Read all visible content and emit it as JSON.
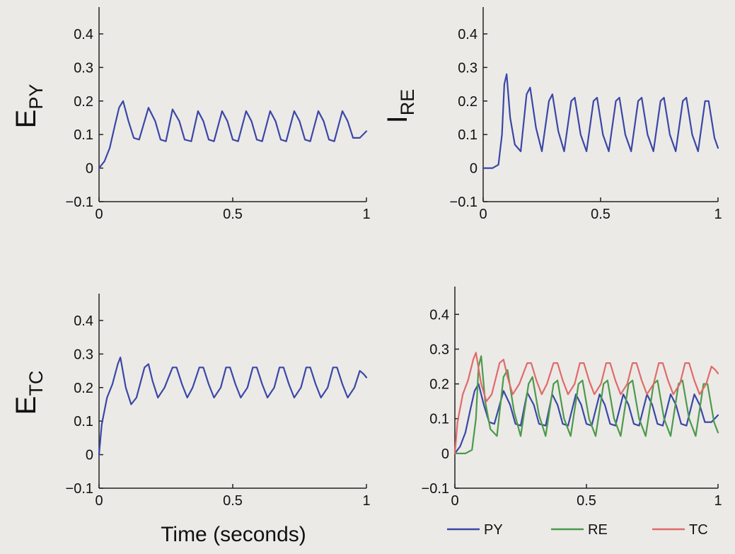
{
  "xlabel": "Time (seconds)",
  "colors": {
    "PY": "#3a47a8",
    "RE": "#4c9a4c",
    "TC": "#e06a6a",
    "axis": "#222222"
  },
  "chart_data": [
    {
      "type": "line",
      "ylabel_main": "E",
      "ylabel_sub": "PY",
      "xlim": [
        0,
        1
      ],
      "ylim": [
        -0.1,
        0.48
      ],
      "xticks": [
        0,
        0.5,
        1
      ],
      "xtick_labels": [
        "0",
        "0.5",
        "1"
      ],
      "yticks": [
        -0.1,
        0,
        0.1,
        0.2,
        0.3,
        0.4
      ],
      "ytick_labels": [
        "−0.1",
        "0",
        "0.1",
        "0.2",
        "0.3",
        "0.4"
      ],
      "grid": false,
      "series": [
        {
          "color_key": "PY",
          "x": [
            0,
            0.02,
            0.04,
            0.06,
            0.075,
            0.09,
            0.11,
            0.13,
            0.15,
            0.185,
            0.21,
            0.23,
            0.25,
            0.275,
            0.3,
            0.32,
            0.345,
            0.37,
            0.39,
            0.41,
            0.43,
            0.46,
            0.48,
            0.5,
            0.52,
            0.55,
            0.57,
            0.59,
            0.61,
            0.64,
            0.66,
            0.68,
            0.7,
            0.73,
            0.75,
            0.77,
            0.79,
            0.82,
            0.84,
            0.86,
            0.88,
            0.91,
            0.93,
            0.95,
            0.975,
            1.0
          ],
          "y": [
            0.0,
            0.02,
            0.06,
            0.13,
            0.18,
            0.2,
            0.14,
            0.09,
            0.085,
            0.18,
            0.14,
            0.085,
            0.08,
            0.175,
            0.14,
            0.085,
            0.08,
            0.17,
            0.14,
            0.085,
            0.08,
            0.17,
            0.14,
            0.085,
            0.08,
            0.17,
            0.14,
            0.085,
            0.08,
            0.17,
            0.14,
            0.085,
            0.08,
            0.17,
            0.14,
            0.085,
            0.08,
            0.17,
            0.14,
            0.085,
            0.08,
            0.17,
            0.14,
            0.09,
            0.09,
            0.11
          ]
        }
      ]
    },
    {
      "type": "line",
      "ylabel_main": "I",
      "ylabel_sub": "RE",
      "xlim": [
        0,
        1
      ],
      "ylim": [
        -0.1,
        0.48
      ],
      "xticks": [
        0,
        0.5,
        1
      ],
      "xtick_labels": [
        "0",
        "0.5",
        "1"
      ],
      "yticks": [
        -0.1,
        0,
        0.1,
        0.2,
        0.3,
        0.4
      ],
      "ytick_labels": [
        "−0.1",
        "0",
        "0.1",
        "0.2",
        "0.3",
        "0.4"
      ],
      "grid": false,
      "series": [
        {
          "color_key": "RE",
          "line_color_key": "PY",
          "x": [
            0,
            0.04,
            0.065,
            0.08,
            0.09,
            0.1,
            0.115,
            0.135,
            0.16,
            0.185,
            0.2,
            0.225,
            0.25,
            0.28,
            0.295,
            0.32,
            0.345,
            0.375,
            0.39,
            0.415,
            0.44,
            0.47,
            0.485,
            0.51,
            0.535,
            0.565,
            0.58,
            0.605,
            0.63,
            0.66,
            0.675,
            0.7,
            0.725,
            0.755,
            0.77,
            0.795,
            0.82,
            0.85,
            0.865,
            0.89,
            0.915,
            0.945,
            0.96,
            0.985,
            1.0
          ],
          "y": [
            0.0,
            0.0,
            0.01,
            0.1,
            0.25,
            0.28,
            0.15,
            0.07,
            0.05,
            0.22,
            0.24,
            0.12,
            0.05,
            0.2,
            0.22,
            0.11,
            0.05,
            0.2,
            0.21,
            0.1,
            0.05,
            0.2,
            0.21,
            0.1,
            0.05,
            0.2,
            0.21,
            0.1,
            0.05,
            0.2,
            0.21,
            0.1,
            0.05,
            0.2,
            0.21,
            0.1,
            0.05,
            0.2,
            0.21,
            0.1,
            0.05,
            0.2,
            0.2,
            0.09,
            0.06
          ]
        }
      ]
    },
    {
      "type": "line",
      "ylabel_main": "E",
      "ylabel_sub": "TC",
      "xlim": [
        0,
        1
      ],
      "ylim": [
        -0.1,
        0.48
      ],
      "xticks": [
        0,
        0.5,
        1
      ],
      "xtick_labels": [
        "0",
        "0.5",
        "1"
      ],
      "yticks": [
        -0.1,
        0,
        0.1,
        0.2,
        0.3,
        0.4
      ],
      "ytick_labels": [
        "−0.1",
        "0",
        "0.1",
        "0.2",
        "0.3",
        "0.4"
      ],
      "grid": false,
      "series": [
        {
          "color_key": "TC",
          "line_color_key": "PY",
          "x": [
            0,
            0.01,
            0.03,
            0.05,
            0.07,
            0.08,
            0.1,
            0.12,
            0.14,
            0.17,
            0.185,
            0.2,
            0.22,
            0.245,
            0.275,
            0.29,
            0.31,
            0.33,
            0.35,
            0.375,
            0.39,
            0.41,
            0.43,
            0.455,
            0.475,
            0.49,
            0.51,
            0.53,
            0.555,
            0.575,
            0.59,
            0.61,
            0.63,
            0.655,
            0.675,
            0.69,
            0.71,
            0.73,
            0.755,
            0.775,
            0.79,
            0.81,
            0.83,
            0.855,
            0.875,
            0.89,
            0.91,
            0.93,
            0.955,
            0.975,
            0.99,
            1.0
          ],
          "y": [
            0.0,
            0.09,
            0.17,
            0.21,
            0.27,
            0.29,
            0.2,
            0.15,
            0.17,
            0.26,
            0.27,
            0.22,
            0.17,
            0.2,
            0.26,
            0.26,
            0.21,
            0.17,
            0.2,
            0.26,
            0.26,
            0.21,
            0.17,
            0.2,
            0.26,
            0.26,
            0.21,
            0.17,
            0.2,
            0.26,
            0.26,
            0.21,
            0.17,
            0.2,
            0.26,
            0.26,
            0.21,
            0.17,
            0.2,
            0.26,
            0.26,
            0.21,
            0.17,
            0.2,
            0.26,
            0.26,
            0.21,
            0.17,
            0.2,
            0.25,
            0.24,
            0.23
          ]
        }
      ]
    },
    {
      "type": "line",
      "ylabel_main": "",
      "ylabel_sub": "",
      "xlim": [
        0,
        1
      ],
      "ylim": [
        -0.1,
        0.48
      ],
      "xticks": [
        0,
        0.5,
        1
      ],
      "xtick_labels": [
        "0",
        "0.5",
        "1"
      ],
      "yticks": [
        -0.1,
        0,
        0.1,
        0.2,
        0.3,
        0.4
      ],
      "ytick_labels": [
        "−0.1",
        "0",
        "0.1",
        "0.2",
        "0.3",
        "0.4"
      ],
      "grid": false,
      "legend": {
        "placement": "bottom",
        "entries": [
          "PY",
          "RE",
          "TC"
        ]
      },
      "series": [
        {
          "name": "PY",
          "color_key": "PY",
          "x": [
            0,
            0.02,
            0.04,
            0.06,
            0.075,
            0.09,
            0.11,
            0.13,
            0.15,
            0.185,
            0.21,
            0.23,
            0.25,
            0.275,
            0.3,
            0.32,
            0.345,
            0.37,
            0.39,
            0.41,
            0.43,
            0.46,
            0.48,
            0.5,
            0.52,
            0.55,
            0.57,
            0.59,
            0.61,
            0.64,
            0.66,
            0.68,
            0.7,
            0.73,
            0.75,
            0.77,
            0.79,
            0.82,
            0.84,
            0.86,
            0.88,
            0.91,
            0.93,
            0.95,
            0.975,
            1.0
          ],
          "y": [
            0.0,
            0.02,
            0.06,
            0.13,
            0.18,
            0.2,
            0.14,
            0.09,
            0.085,
            0.18,
            0.14,
            0.085,
            0.08,
            0.175,
            0.14,
            0.085,
            0.08,
            0.17,
            0.14,
            0.085,
            0.08,
            0.17,
            0.14,
            0.085,
            0.08,
            0.17,
            0.14,
            0.085,
            0.08,
            0.17,
            0.14,
            0.085,
            0.08,
            0.17,
            0.14,
            0.085,
            0.08,
            0.17,
            0.14,
            0.085,
            0.08,
            0.17,
            0.14,
            0.09,
            0.09,
            0.11
          ]
        },
        {
          "name": "RE",
          "color_key": "RE",
          "x": [
            0,
            0.04,
            0.065,
            0.08,
            0.09,
            0.1,
            0.115,
            0.135,
            0.16,
            0.185,
            0.2,
            0.225,
            0.25,
            0.28,
            0.295,
            0.32,
            0.345,
            0.375,
            0.39,
            0.415,
            0.44,
            0.47,
            0.485,
            0.51,
            0.535,
            0.565,
            0.58,
            0.605,
            0.63,
            0.66,
            0.675,
            0.7,
            0.725,
            0.755,
            0.77,
            0.795,
            0.82,
            0.85,
            0.865,
            0.89,
            0.915,
            0.945,
            0.96,
            0.985,
            1.0
          ],
          "y": [
            0.0,
            0.0,
            0.01,
            0.1,
            0.25,
            0.28,
            0.15,
            0.07,
            0.05,
            0.22,
            0.24,
            0.12,
            0.05,
            0.2,
            0.22,
            0.11,
            0.05,
            0.2,
            0.21,
            0.1,
            0.05,
            0.2,
            0.21,
            0.1,
            0.05,
            0.2,
            0.21,
            0.1,
            0.05,
            0.2,
            0.21,
            0.1,
            0.05,
            0.2,
            0.21,
            0.1,
            0.05,
            0.2,
            0.21,
            0.1,
            0.05,
            0.2,
            0.2,
            0.09,
            0.06
          ]
        },
        {
          "name": "TC",
          "color_key": "TC",
          "x": [
            0,
            0.01,
            0.03,
            0.05,
            0.07,
            0.08,
            0.1,
            0.12,
            0.14,
            0.17,
            0.185,
            0.2,
            0.22,
            0.245,
            0.275,
            0.29,
            0.31,
            0.33,
            0.35,
            0.375,
            0.39,
            0.41,
            0.43,
            0.455,
            0.475,
            0.49,
            0.51,
            0.53,
            0.555,
            0.575,
            0.59,
            0.61,
            0.63,
            0.655,
            0.675,
            0.69,
            0.71,
            0.73,
            0.755,
            0.775,
            0.79,
            0.81,
            0.83,
            0.855,
            0.875,
            0.89,
            0.91,
            0.93,
            0.955,
            0.975,
            0.99,
            1.0
          ],
          "y": [
            0.0,
            0.09,
            0.17,
            0.21,
            0.27,
            0.29,
            0.2,
            0.15,
            0.17,
            0.26,
            0.27,
            0.22,
            0.17,
            0.2,
            0.26,
            0.26,
            0.21,
            0.17,
            0.2,
            0.26,
            0.26,
            0.21,
            0.17,
            0.2,
            0.26,
            0.26,
            0.21,
            0.17,
            0.2,
            0.26,
            0.26,
            0.21,
            0.17,
            0.2,
            0.26,
            0.26,
            0.21,
            0.17,
            0.2,
            0.26,
            0.26,
            0.21,
            0.17,
            0.2,
            0.26,
            0.26,
            0.21,
            0.17,
            0.2,
            0.25,
            0.24,
            0.23
          ]
        }
      ]
    }
  ]
}
